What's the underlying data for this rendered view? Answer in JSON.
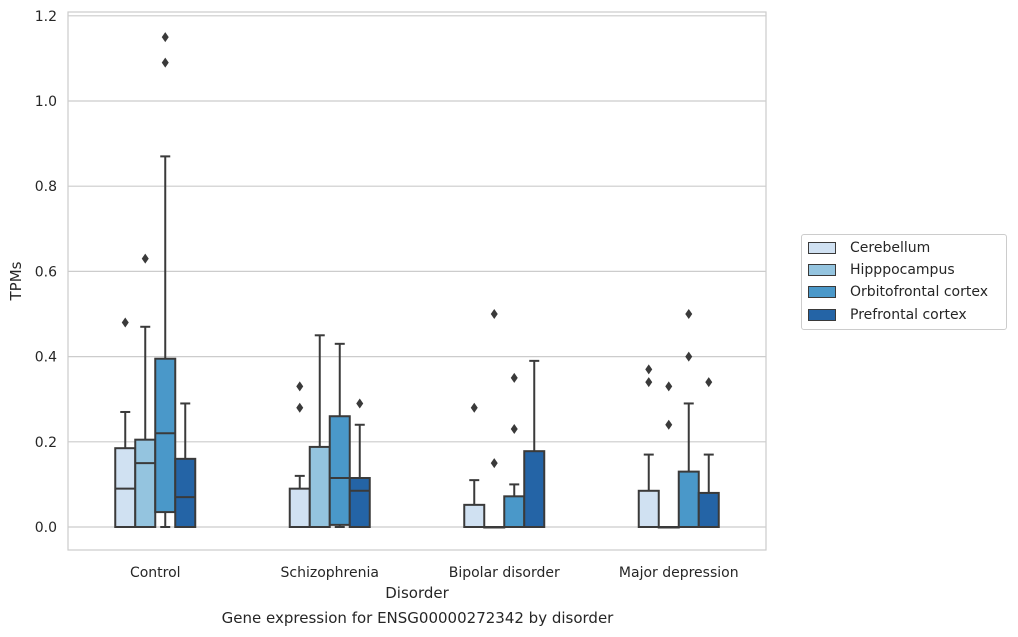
{
  "chart_data": {
    "type": "box",
    "title": "",
    "caption": "Gene expression for ENSG00000272342 by disorder",
    "xlabel": "Disorder",
    "ylabel": "TPMs",
    "ylim": [
      -0.055,
      1.21
    ],
    "yticks": [
      "0.0",
      "0.2",
      "0.4",
      "0.6",
      "0.8",
      "1.0",
      "1.2"
    ],
    "grid": "horizontal",
    "legend_placement": "right",
    "categories": [
      "Control",
      "Schizophrenia",
      "Bipolar disorder",
      "Major depression"
    ],
    "series": [
      {
        "name": "Cerebellum",
        "color": "#d0e1f2",
        "boxes": [
          {
            "min": 0.0,
            "q1": 0.0,
            "median": 0.09,
            "q3": 0.185,
            "max": 0.27,
            "outliers": [
              0.48
            ]
          },
          {
            "min": 0.0,
            "q1": 0.0,
            "median": 0.0,
            "q3": 0.09,
            "max": 0.12,
            "outliers": [
              0.28,
              0.33
            ]
          },
          {
            "min": 0.0,
            "q1": 0.0,
            "median": 0.0,
            "q3": 0.052,
            "max": 0.11,
            "outliers": [
              0.28
            ]
          },
          {
            "min": 0.0,
            "q1": 0.0,
            "median": 0.0,
            "q3": 0.085,
            "max": 0.17,
            "outliers": [
              0.34,
              0.37
            ]
          }
        ]
      },
      {
        "name": "Hipppocampus",
        "color": "#94c4df",
        "boxes": [
          {
            "min": 0.0,
            "q1": 0.0,
            "median": 0.15,
            "q3": 0.205,
            "max": 0.47,
            "outliers": [
              0.63
            ]
          },
          {
            "min": 0.0,
            "q1": 0.0,
            "median": 0.0,
            "q3": 0.188,
            "max": 0.45,
            "outliers": []
          },
          {
            "min": 0.0,
            "q1": 0.0,
            "median": 0.0,
            "q3": 0.0,
            "max": 0.0,
            "outliers": [
              0.15,
              0.5
            ]
          },
          {
            "min": 0.0,
            "q1": 0.0,
            "median": 0.0,
            "q3": 0.0,
            "max": 0.0,
            "outliers": [
              0.24,
              0.33
            ]
          }
        ]
      },
      {
        "name": "Orbitofrontal cortex",
        "color": "#4a98c9",
        "boxes": [
          {
            "min": 0.0,
            "q1": 0.035,
            "median": 0.22,
            "q3": 0.395,
            "max": 0.87,
            "outliers": [
              1.09,
              1.15
            ]
          },
          {
            "min": 0.0,
            "q1": 0.005,
            "median": 0.115,
            "q3": 0.26,
            "max": 0.43,
            "outliers": []
          },
          {
            "min": 0.0,
            "q1": 0.0,
            "median": 0.0,
            "q3": 0.072,
            "max": 0.1,
            "outliers": [
              0.23,
              0.35
            ]
          },
          {
            "min": 0.0,
            "q1": 0.0,
            "median": 0.0,
            "q3": 0.13,
            "max": 0.29,
            "outliers": [
              0.4,
              0.5
            ]
          }
        ]
      },
      {
        "name": "Prefrontal cortex",
        "color": "#2464a6",
        "boxes": [
          {
            "min": 0.0,
            "q1": 0.0,
            "median": 0.07,
            "q3": 0.16,
            "max": 0.29,
            "outliers": []
          },
          {
            "min": 0.0,
            "q1": 0.0,
            "median": 0.085,
            "q3": 0.115,
            "max": 0.24,
            "outliers": [
              0.29
            ]
          },
          {
            "min": 0.0,
            "q1": 0.0,
            "median": 0.0,
            "q3": 0.178,
            "max": 0.39,
            "outliers": []
          },
          {
            "min": 0.0,
            "q1": 0.0,
            "median": 0.0,
            "q3": 0.08,
            "max": 0.17,
            "outliers": [
              0.34
            ]
          }
        ]
      }
    ]
  }
}
